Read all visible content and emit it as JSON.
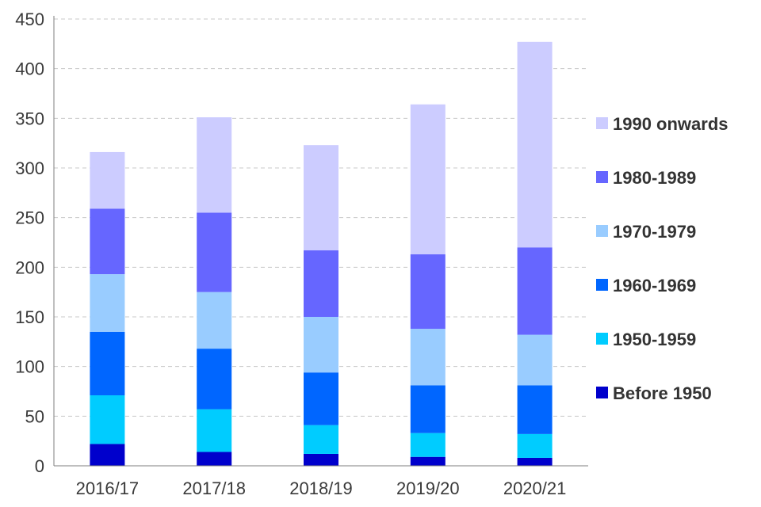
{
  "chart_data": {
    "type": "bar",
    "stacked": true,
    "categories": [
      "2016/17",
      "2017/18",
      "2018/19",
      "2019/20",
      "2020/21"
    ],
    "series": [
      {
        "name": "Before 1950",
        "color": "#0000cc",
        "values": [
          22,
          14,
          12,
          9,
          8
        ]
      },
      {
        "name": "1950-1959",
        "color": "#00ccff",
        "values": [
          49,
          43,
          29,
          24,
          24
        ]
      },
      {
        "name": "1960-1969",
        "color": "#0066ff",
        "values": [
          64,
          61,
          53,
          48,
          49
        ]
      },
      {
        "name": "1970-1979",
        "color": "#99ccff",
        "values": [
          58,
          57,
          56,
          57,
          51
        ]
      },
      {
        "name": "1980-1989",
        "color": "#6666ff",
        "values": [
          66,
          80,
          67,
          75,
          88
        ]
      },
      {
        "name": "1990 onwards",
        "color": "#ccccff",
        "values": [
          57,
          96,
          106,
          151,
          207
        ]
      }
    ],
    "ylim": [
      0,
      450
    ],
    "yticks": [
      "0",
      "50",
      "100",
      "150",
      "200",
      "250",
      "300",
      "350",
      "400",
      "450"
    ],
    "grid": "horizontal-dashed",
    "legend_position": "right",
    "legend_order": [
      "1990 onwards",
      "1980-1989",
      "1970-1979",
      "1960-1969",
      "1950-1959",
      "Before 1950"
    ]
  }
}
